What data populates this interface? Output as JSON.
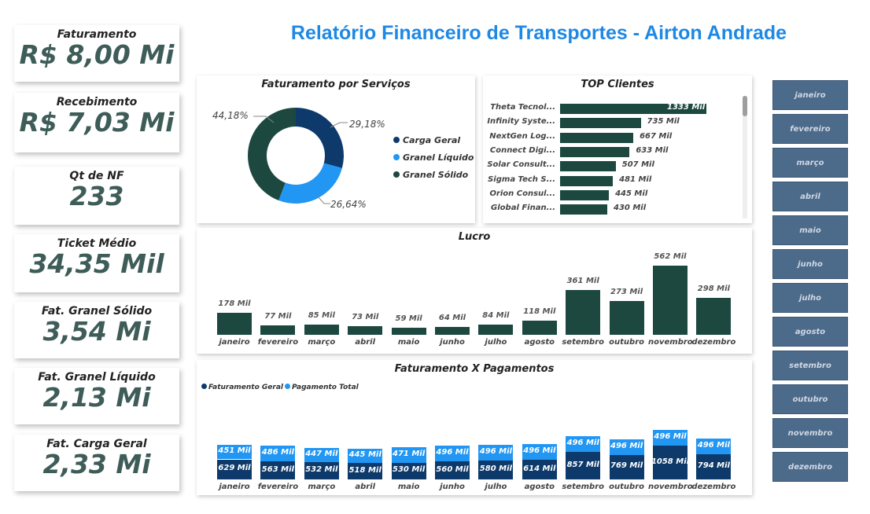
{
  "header": {
    "title": "Relatório Financeiro de Transportes - Airton Andrade"
  },
  "kpis": [
    {
      "label": "Faturamento",
      "value": "R$ 8,00 Mi"
    },
    {
      "label": "Recebimento",
      "value": "R$ 7,03 Mi"
    },
    {
      "label": "Qt de NF",
      "value": "233"
    },
    {
      "label": "Ticket Médio",
      "value": "34,35 Mil"
    },
    {
      "label": "Fat. Granel Sólido",
      "value": "3,54 Mi"
    },
    {
      "label": "Fat. Granel Líquido",
      "value": "2,13 Mi"
    },
    {
      "label": "Fat. Carga Geral",
      "value": "2,33 Mi"
    }
  ],
  "months_filter": [
    "janeiro",
    "fevereiro",
    "março",
    "abril",
    "maio",
    "junho",
    "julho",
    "agosto",
    "setembro",
    "outubro",
    "novembro",
    "dezembro"
  ],
  "colors": {
    "dark_green": "#1c4840",
    "navy": "#0d3a6b",
    "blue": "#2196f3",
    "slicer": "#4c6a8a",
    "title_blue": "#1e88e5"
  },
  "chart_data": [
    {
      "type": "pie",
      "title": "Faturamento por Serviços",
      "categories": [
        "Carga Geral",
        "Granel Líquido",
        "Granel Sólido"
      ],
      "values": [
        29.18,
        26.64,
        44.18
      ],
      "labels": [
        "29,18%",
        "26,64%",
        "44,18%"
      ],
      "colors": [
        "#0d3a6b",
        "#2196f3",
        "#1c4840"
      ],
      "legend": "right"
    },
    {
      "type": "bar",
      "title": "TOP Clientes",
      "orientation": "horizontal",
      "categories": [
        "Theta Tecnol...",
        "Infinity Syste...",
        "NextGen Log...",
        "Connect Digi...",
        "Solar Consult...",
        "Sigma Tech S...",
        "Orion Consul...",
        "Global Finan..."
      ],
      "values": [
        1333,
        735,
        667,
        633,
        507,
        481,
        445,
        430
      ],
      "labels": [
        "1333 Mil",
        "735 Mil",
        "667 Mil",
        "633 Mil",
        "507 Mil",
        "481 Mil",
        "445 Mil",
        "430 Mil"
      ]
    },
    {
      "type": "bar",
      "title": "Lucro",
      "categories": [
        "janeiro",
        "fevereiro",
        "março",
        "abril",
        "maio",
        "junho",
        "julho",
        "agosto",
        "setembro",
        "outubro",
        "novembro",
        "dezembro"
      ],
      "values": [
        178,
        77,
        85,
        73,
        59,
        64,
        84,
        118,
        361,
        273,
        562,
        298
      ],
      "labels": [
        "178 Mil",
        "77 Mil",
        "85 Mil",
        "73 Mil",
        "59 Mil",
        "64 Mil",
        "84 Mil",
        "118 Mil",
        "361 Mil",
        "273 Mil",
        "562 Mil",
        "298 Mil"
      ]
    },
    {
      "type": "bar",
      "stacked": true,
      "title": "Faturamento X Pagamentos",
      "categories": [
        "janeiro",
        "fevereiro",
        "março",
        "abril",
        "maio",
        "junho",
        "julho",
        "agosto",
        "setembro",
        "outubro",
        "novembro",
        "dezembro"
      ],
      "series": [
        {
          "name": "Faturamento Geral",
          "values": [
            629,
            563,
            532,
            518,
            530,
            560,
            580,
            614,
            857,
            769,
            1058,
            794
          ],
          "labels": [
            "629 Mil",
            "563 Mil",
            "532 Mil",
            "518 Mil",
            "530 Mil",
            "560 Mil",
            "580 Mil",
            "614 Mil",
            "857 Mil",
            "769 Mil",
            "1058 Mil",
            "794 Mil"
          ]
        },
        {
          "name": "Pagamento Total",
          "values": [
            451,
            486,
            447,
            445,
            471,
            496,
            496,
            496,
            496,
            496,
            496,
            496
          ],
          "labels": [
            "451 Mil",
            "486 Mil",
            "447 Mil",
            "445 Mil",
            "471 Mil",
            "496 Mil",
            "496 Mil",
            "496 Mil",
            "496 Mil",
            "496 Mil",
            "496 Mil",
            "496 Mil"
          ]
        }
      ],
      "legend": "top-left"
    }
  ]
}
